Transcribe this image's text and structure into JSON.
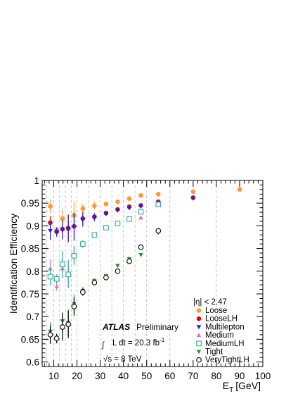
{
  "chart_data": {
    "type": "scatter",
    "xlabel": "E",
    "xlabel_sub": "T",
    "xlabel_unit": "[GeV]",
    "ylabel": "Identification Efficiency",
    "xlim": [
      5,
      100
    ],
    "ylim": [
      0.59,
      1.0
    ],
    "x_ticks": [
      10,
      20,
      30,
      40,
      50,
      60,
      70,
      80,
      90,
      100
    ],
    "y_ticks": [
      0.6,
      0.65,
      0.7,
      0.75,
      0.8,
      0.85,
      0.9,
      0.95,
      1
    ],
    "y_tick_labels": [
      "0.6",
      "0.65",
      "0.7",
      "0.75",
      "0.8",
      "0.85",
      "0.9",
      "0.95",
      "1"
    ],
    "bin_edges": [
      7,
      10,
      12.5,
      15,
      17.5,
      20,
      25,
      30,
      35,
      40,
      45,
      50,
      60,
      80,
      100
    ],
    "x": [
      8.5,
      11.25,
      13.75,
      16.25,
      18.75,
      22.5,
      27.5,
      32.5,
      37.5,
      42.5,
      47.5,
      55,
      70,
      90
    ],
    "legend_position": "lower-right",
    "legend_header": "|η| < 2.47",
    "series": [
      {
        "name": "Loose",
        "color": "#ff9933",
        "marker": "circle-filled",
        "values": [
          0.943,
          0.891,
          0.916,
          0.896,
          0.923,
          0.938,
          0.944,
          0.948,
          0.953,
          0.96,
          0.967,
          0.97,
          0.975,
          0.98
        ],
        "errors": [
          0.015,
          0.005,
          0.02,
          0.03,
          0.03,
          0.01,
          0.008,
          0.005,
          0.004,
          0.003,
          0.003,
          0.002,
          0.002,
          0.002
        ]
      },
      {
        "name": "LooseLH",
        "color": "#ee0000",
        "marker": "circle-filled",
        "values": [
          0.907,
          0.887,
          0.893,
          0.894,
          0.899,
          0.916,
          0.92,
          0.928,
          0.936,
          0.942,
          0.945,
          0.953,
          0.962
        ],
        "x_index": [
          0,
          1,
          2,
          3,
          4,
          5,
          6,
          7,
          8,
          9,
          10,
          11,
          12
        ],
        "x_override": [
          8.5,
          11.25,
          13.75,
          16.25,
          18.75,
          22.5,
          27.5,
          32.5,
          37.5,
          42.5,
          47.5,
          55,
          70
        ],
        "errors": [
          0.015,
          0.01,
          0.02,
          0.03,
          0.03,
          0.015,
          0.008,
          0.005,
          0.004,
          0.003,
          0.003,
          0.002,
          0.002
        ]
      },
      {
        "name": "Multilepton",
        "color": "#2222dd",
        "marker": "triangle-down",
        "values": [
          0.889,
          0.886,
          0.89,
          0.894,
          0.897,
          0.913,
          0.918,
          0.927,
          0.934,
          0.939,
          0.943,
          0.95,
          0.96
        ],
        "errors": [
          0.02,
          0.01,
          0.02,
          0.03,
          0.03,
          0.015,
          0.008,
          0.005,
          0.004,
          0.003,
          0.003,
          0.002,
          0.002
        ]
      },
      {
        "name": "Medium",
        "color": "#cc77cc",
        "marker": "triangle-up",
        "values": [
          0.806,
          0.767,
          0.806,
          0.795,
          0.836,
          0.86,
          0.879,
          0.895,
          0.904,
          0.914,
          0.918,
          0.945
        ],
        "errors": [
          0.02,
          0.01,
          0.02,
          0.03,
          0.02,
          0.008,
          0.005,
          0.004,
          0.003,
          0.003,
          0.002,
          0.002
        ]
      },
      {
        "name": "MediumLH",
        "color": "#33aaaa",
        "marker": "square-open",
        "values": [
          0.788,
          0.783,
          0.815,
          0.793,
          0.834,
          0.86,
          0.88,
          0.896,
          0.905,
          0.915,
          0.931,
          0.947
        ],
        "errors": [
          0.02,
          0.01,
          0.03,
          0.03,
          0.02,
          0.008,
          0.005,
          0.004,
          0.003,
          0.003,
          0.002,
          0.002
        ]
      },
      {
        "name": "Tight",
        "color": "#229922",
        "marker": "triangle-down",
        "values": [
          0.667,
          0.651,
          0.69,
          0.686,
          0.728,
          0.757,
          0.779,
          0.79,
          0.812,
          0.827,
          0.836,
          0.885
        ],
        "errors": [
          0.02,
          0.01,
          0.02,
          0.03,
          0.02,
          0.008,
          0.005,
          0.004,
          0.003,
          0.003,
          0.002,
          0.002
        ]
      },
      {
        "name": "VeryTightLH",
        "color": "#000000",
        "marker": "circle-open",
        "values": [
          0.66,
          0.652,
          0.677,
          0.683,
          0.722,
          0.754,
          0.775,
          0.786,
          0.8,
          0.822,
          0.853,
          0.889
        ],
        "errors": [
          0.02,
          0.01,
          0.03,
          0.03,
          0.02,
          0.008,
          0.005,
          0.004,
          0.003,
          0.003,
          0.002,
          0.002
        ]
      }
    ],
    "annotations": {
      "atlas": "ATLAS",
      "preliminary": "Preliminary",
      "integral": "∫",
      "lumi": "L dt = 20.3 fb",
      "lumi_sup": "-1",
      "sqrt_s": "√s = 8 TeV"
    }
  }
}
